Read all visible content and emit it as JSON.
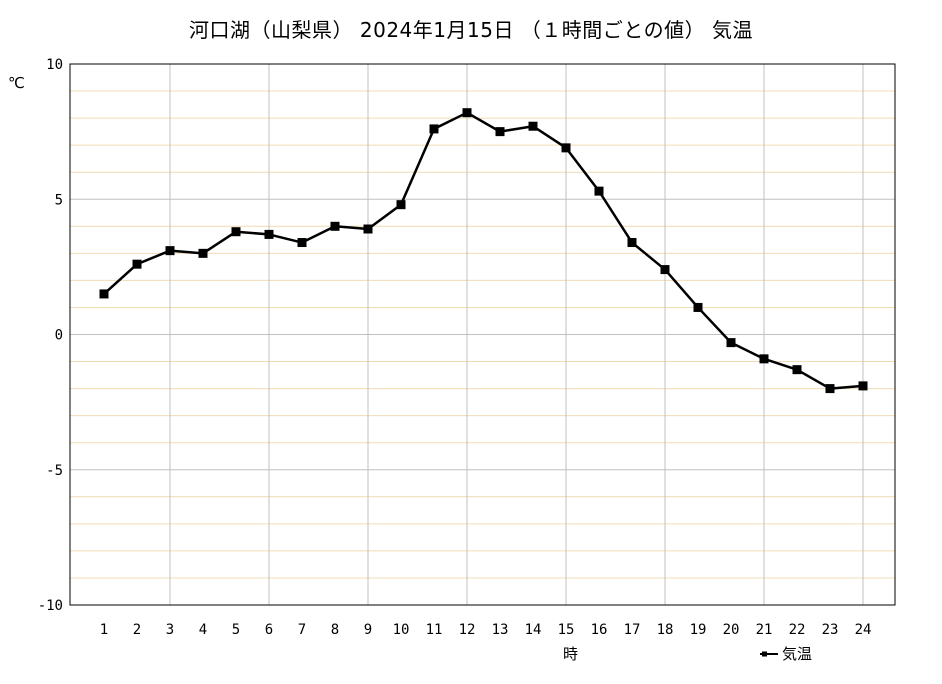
{
  "chart_data": {
    "type": "line",
    "title": "河口湖（山梨県） 2024年1月15日 （１時間ごとの値） 気温",
    "xlabel": "時",
    "ylabel": "℃",
    "categories": [
      "1",
      "2",
      "3",
      "4",
      "5",
      "6",
      "7",
      "8",
      "9",
      "10",
      "11",
      "12",
      "13",
      "14",
      "15",
      "16",
      "17",
      "18",
      "19",
      "20",
      "21",
      "22",
      "23",
      "24"
    ],
    "ylim": [
      -10,
      10
    ],
    "yticks": [
      "10",
      "5",
      "0",
      "-5",
      "-10"
    ],
    "grid": true,
    "legend_position": "bottom-right",
    "series": [
      {
        "name": "気温",
        "color": "#000000",
        "values": [
          1.5,
          2.6,
          3.1,
          3.0,
          3.8,
          3.7,
          3.4,
          4.0,
          3.9,
          4.8,
          7.6,
          8.2,
          7.5,
          7.7,
          6.9,
          5.3,
          3.4,
          2.4,
          1.0,
          -0.3,
          -0.9,
          -1.3,
          -2.0,
          -1.9
        ]
      }
    ],
    "colors": {
      "major_grid": "#c0c0c0",
      "minor_grid": "#f0dcb4",
      "frame": "#000000"
    }
  }
}
